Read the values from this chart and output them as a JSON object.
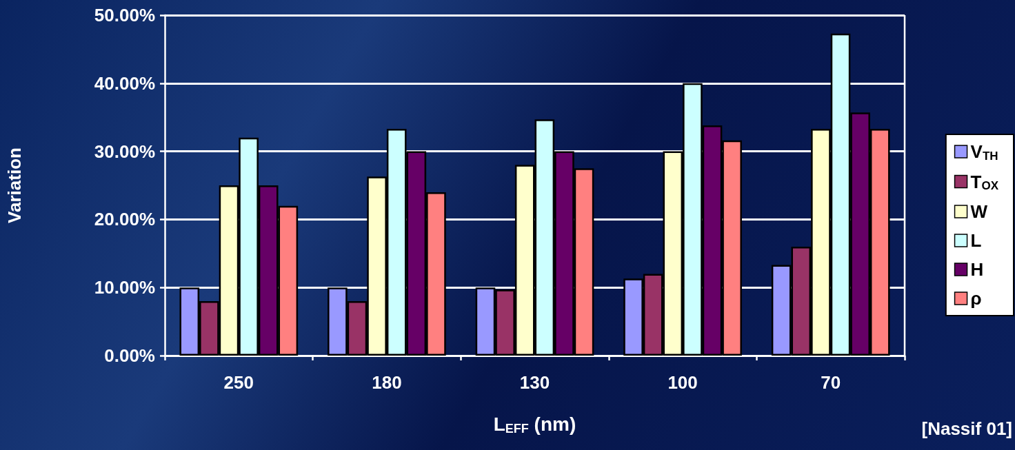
{
  "chart_data": {
    "type": "bar",
    "categories": [
      "250",
      "180",
      "130",
      "100",
      "70"
    ],
    "xlabel": "L$_{EFF}$ (nm)",
    "ylabel": "Variation",
    "annotations": [
      "[Nassif 01]"
    ],
    "series": [
      {
        "name": "V$_{TH}$",
        "color": "#9999ff",
        "values": [
          10,
          10,
          10,
          11.3,
          13.3
        ]
      },
      {
        "name": "T$_{OX}$",
        "color": "#993366",
        "values": [
          8,
          8,
          9.7,
          12,
          16
        ]
      },
      {
        "name": "W",
        "color": "#ffffcc",
        "values": [
          25,
          26.3,
          28,
          30,
          33.3
        ]
      },
      {
        "name": "L",
        "color": "#ccffff",
        "values": [
          32,
          33.3,
          34.7,
          40,
          47.3
        ]
      },
      {
        "name": "H",
        "color": "#660066",
        "values": [
          25,
          30,
          30,
          33.8,
          35.7
        ]
      },
      {
        "name": "ρ",
        "color": "#ff8080",
        "values": [
          22,
          24,
          27.5,
          31.6,
          33.3
        ]
      }
    ],
    "ylim": [
      0,
      50
    ],
    "yticks": [
      {
        "value": 0,
        "label": "0.00%"
      },
      {
        "value": 10,
        "label": "10.00%"
      },
      {
        "value": 20,
        "label": "20.00%"
      },
      {
        "value": 30,
        "label": "30.00%"
      },
      {
        "value": 40,
        "label": "40.00%"
      },
      {
        "value": 50,
        "label": "50.00%"
      }
    ],
    "grid": "y",
    "legend": "right"
  }
}
